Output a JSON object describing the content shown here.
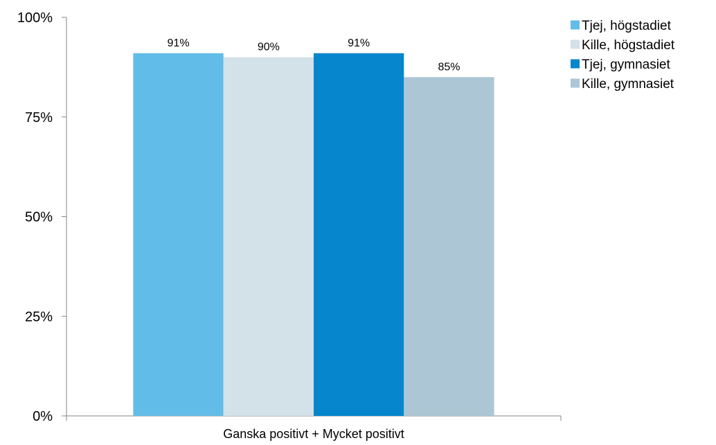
{
  "chart_data": {
    "type": "bar",
    "title": "",
    "xlabel": "",
    "ylabel": "",
    "categories": [
      "Ganska positivt + Mycket positivt"
    ],
    "series": [
      {
        "name": "Tjej, högstadiet",
        "values": [
          91
        ],
        "label": "91%",
        "color": "#62BCE8"
      },
      {
        "name": "Kille, högstadiet",
        "values": [
          90
        ],
        "label": "90%",
        "color": "#D3E1E8"
      },
      {
        "name": "Tjej, gymnasiet",
        "values": [
          91
        ],
        "label": "91%",
        "color": "#0686CC"
      },
      {
        "name": "Kille, gymnasiet",
        "values": [
          85
        ],
        "label": "85%",
        "color": "#ADC6D5"
      }
    ],
    "ylim": [
      0,
      100
    ],
    "yticks": [
      0,
      25,
      50,
      75,
      100
    ],
    "ytick_labels": [
      "0%",
      "25%",
      "50%",
      "75%",
      "100%"
    ],
    "grid": false,
    "legend_position": "right"
  }
}
